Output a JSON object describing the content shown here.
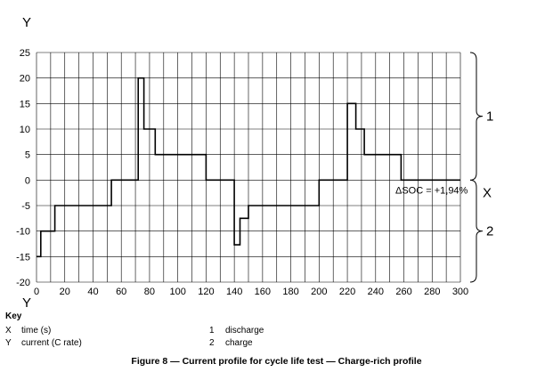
{
  "chart_data": {
    "type": "line",
    "step": true,
    "x_axis_letter": "X",
    "y_axis_letter": "Y",
    "xlim": [
      0,
      300
    ],
    "ylim": [
      -20,
      25
    ],
    "x_ticks": [
      0,
      20,
      40,
      60,
      80,
      100,
      120,
      140,
      160,
      180,
      200,
      220,
      240,
      260,
      280,
      300
    ],
    "y_ticks": [
      25,
      20,
      15,
      10,
      5,
      0,
      -5,
      -10,
      -15,
      -20
    ],
    "grid": true,
    "series": [
      {
        "points": [
          [
            0,
            -15
          ],
          [
            3,
            -15
          ],
          [
            3,
            -10
          ],
          [
            13,
            -10
          ],
          [
            13,
            -5
          ],
          [
            53,
            -5
          ],
          [
            53,
            0
          ],
          [
            72,
            0
          ],
          [
            72,
            20
          ],
          [
            76,
            20
          ],
          [
            76,
            10
          ],
          [
            84,
            10
          ],
          [
            84,
            5
          ],
          [
            120,
            5
          ],
          [
            120,
            0
          ],
          [
            140,
            0
          ],
          [
            140,
            -12.7
          ],
          [
            144,
            -12.7
          ],
          [
            144,
            -7.5
          ],
          [
            150,
            -7.5
          ],
          [
            150,
            -5
          ],
          [
            200,
            -5
          ],
          [
            200,
            0
          ],
          [
            220,
            0
          ],
          [
            220,
            15
          ],
          [
            226,
            15
          ],
          [
            226,
            10
          ],
          [
            232,
            10
          ],
          [
            232,
            5
          ],
          [
            258,
            5
          ],
          [
            258,
            0
          ],
          [
            300,
            0
          ]
        ]
      }
    ],
    "annotation": "ΔSOC = +1,94%",
    "regions": [
      {
        "label": "1",
        "from": 0,
        "to": 25
      },
      {
        "label": "2",
        "from": -20,
        "to": 0
      }
    ]
  },
  "key": {
    "title": "Key",
    "items": [
      {
        "symbol": "X",
        "text": "time (s)"
      },
      {
        "symbol": "Y",
        "text": "current (C rate)"
      },
      {
        "symbol": "1",
        "text": "discharge"
      },
      {
        "symbol": "2",
        "text": "charge"
      }
    ]
  },
  "caption": "Figure 8 — Current profile for cycle life test — Charge-rich profile"
}
